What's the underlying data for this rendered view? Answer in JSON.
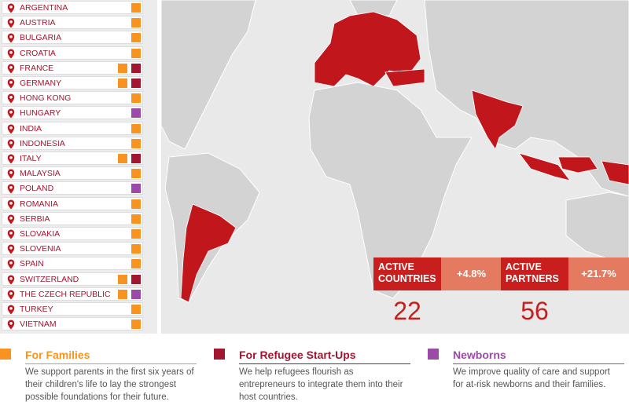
{
  "programs": [
    {
      "title": "For Families",
      "color": "#f7931e",
      "description": "We support parents in the first six years of their children's life to lay the strongest possible foundations for their future."
    },
    {
      "title": "For Refugee Start-Ups",
      "color": "#a3162f",
      "description": "We help refugees flourish as entrepreneurs to integrate them into their host countries."
    },
    {
      "title": "Newborns",
      "color": "#9b4aa8",
      "description": "We improve quality of care and support for at-risk newborns and their families."
    }
  ],
  "countries": [
    {
      "name": "ARGENTINA",
      "programs": [
        0
      ]
    },
    {
      "name": "AUSTRIA",
      "programs": [
        0
      ]
    },
    {
      "name": "BULGARIA",
      "programs": [
        0
      ]
    },
    {
      "name": "CROATIA",
      "programs": [
        0
      ]
    },
    {
      "name": "FRANCE",
      "programs": [
        0,
        1
      ]
    },
    {
      "name": "GERMANY",
      "programs": [
        0,
        1
      ]
    },
    {
      "name": "HONG KONG",
      "programs": [
        0
      ]
    },
    {
      "name": "HUNGARY",
      "programs": [
        2
      ]
    },
    {
      "name": "INDIA",
      "programs": [
        0
      ]
    },
    {
      "name": "INDONESIA",
      "programs": [
        0
      ]
    },
    {
      "name": "ITALY",
      "programs": [
        0,
        1
      ]
    },
    {
      "name": "MALAYSIA",
      "programs": [
        0
      ]
    },
    {
      "name": "POLAND",
      "programs": [
        2
      ]
    },
    {
      "name": "ROMANIA",
      "programs": [
        0
      ]
    },
    {
      "name": "SERBIA",
      "programs": [
        0
      ]
    },
    {
      "name": "SLOVAKIA",
      "programs": [
        0
      ]
    },
    {
      "name": "SLOVENIA",
      "programs": [
        0
      ]
    },
    {
      "name": "SPAIN",
      "programs": [
        0
      ]
    },
    {
      "name": "SWITZERLAND",
      "programs": [
        0,
        1
      ]
    },
    {
      "name": "THE CZECH REPUBLIC",
      "programs": [
        0,
        2
      ]
    },
    {
      "name": "TURKEY",
      "programs": [
        0
      ]
    },
    {
      "name": "VIETNAM",
      "programs": [
        0
      ]
    }
  ],
  "stats": [
    {
      "label": "ACTIVE COUNTRIES",
      "change": "+4.8%",
      "value": "22"
    },
    {
      "label": "ACTIVE PARTNERS",
      "change": "+21.7%",
      "value": "56"
    }
  ]
}
